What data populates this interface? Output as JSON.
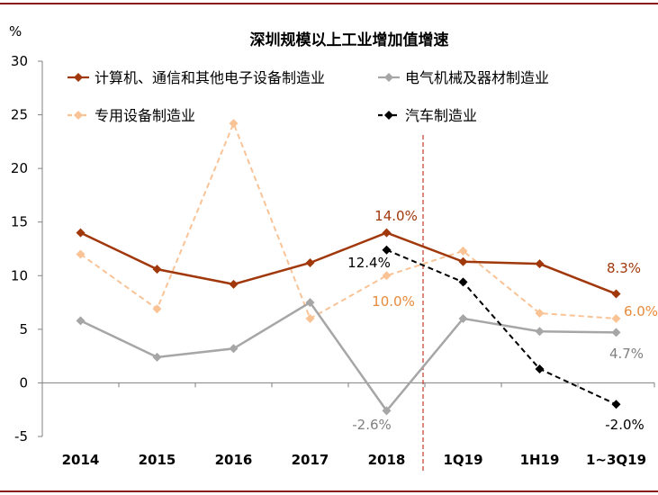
{
  "chart_data": {
    "type": "line",
    "title": "深圳规模以上工业增加值增速",
    "ylabel": "%",
    "xlabel": "",
    "categories": [
      "2014",
      "2015",
      "2016",
      "2017",
      "2018",
      "1Q19",
      "1H19",
      "1~3Q19"
    ],
    "ylim": [
      -5,
      30
    ],
    "yticks": [
      "30",
      "25",
      "20",
      "15",
      "10",
      "5",
      "0",
      "-5"
    ],
    "grid": false,
    "legend_position": "top",
    "series": [
      {
        "name": "计算机、通信和其他电子设备制造业",
        "color": "#a0380c",
        "style": "solid",
        "values": [
          14.0,
          10.6,
          9.2,
          11.2,
          14.0,
          11.3,
          11.1,
          8.3
        ]
      },
      {
        "name": "电气机械及器材制造业",
        "color": "#a6a6a6",
        "style": "solid",
        "values": [
          5.8,
          2.4,
          3.2,
          7.5,
          -2.6,
          6.0,
          4.8,
          4.7
        ]
      },
      {
        "name": "专用设备制造业",
        "color": "#f9c396",
        "style": "dashed",
        "values": [
          12.0,
          6.9,
          24.2,
          6.0,
          10.0,
          12.3,
          6.5,
          6.0
        ]
      },
      {
        "name": "汽车制造业",
        "color": "#000000",
        "style": "dashed",
        "values": [
          null,
          null,
          null,
          null,
          12.4,
          9.4,
          1.3,
          -2.0
        ]
      }
    ],
    "annotations": [
      {
        "text": "14.0%",
        "color": "#a0380c"
      },
      {
        "text": "12.4%",
        "color": "#000000"
      },
      {
        "text": "10.0%",
        "color": "#e68a3c"
      },
      {
        "text": "-2.6%",
        "color": "#808080"
      },
      {
        "text": "8.3%",
        "color": "#a0380c"
      },
      {
        "text": "6.0%",
        "color": "#e68a3c"
      },
      {
        "text": "4.7%",
        "color": "#808080"
      },
      {
        "text": "-2.0%",
        "color": "#000000"
      }
    ],
    "divider_color": "#c0392b"
  }
}
